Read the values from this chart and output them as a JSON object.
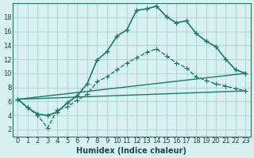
{
  "xlabel": "Humidex (Indice chaleur)",
  "bg_color": "#d8f0f0",
  "grid_color": "#b0d8d8",
  "line_color": "#1a7a6a",
  "x_ticks": [
    0,
    1,
    2,
    3,
    4,
    5,
    6,
    7,
    8,
    9,
    10,
    11,
    12,
    13,
    14,
    15,
    16,
    17,
    18,
    19,
    20,
    21,
    22,
    23
  ],
  "y_ticks": [
    2,
    4,
    6,
    8,
    10,
    12,
    14,
    16,
    18
  ],
  "xlim": [
    -0.5,
    23.5
  ],
  "ylim": [
    1,
    20
  ],
  "line1_x": [
    0,
    1,
    2,
    3,
    4,
    5,
    6,
    7,
    8,
    9,
    10,
    11,
    12,
    13,
    14,
    15,
    16,
    17,
    18,
    19,
    20,
    21,
    22,
    23
  ],
  "line1_y": [
    6.3,
    5.1,
    4.2,
    4.0,
    4.5,
    5.8,
    6.8,
    8.5,
    11.9,
    13.1,
    15.3,
    16.2,
    19.0,
    19.2,
    19.6,
    18.1,
    17.2,
    17.5,
    15.7,
    14.6,
    13.8,
    12.0,
    10.5,
    10.0
  ],
  "line2_x": [
    0,
    1,
    2,
    3,
    4,
    5,
    6,
    7,
    8,
    9,
    10,
    11,
    12,
    13,
    14,
    15,
    16,
    17,
    18,
    19,
    20,
    21,
    22,
    23
  ],
  "line2_y": [
    6.3,
    5.1,
    4.0,
    2.2,
    4.8,
    5.2,
    6.2,
    7.0,
    8.8,
    9.5,
    10.5,
    11.5,
    12.2,
    13.0,
    13.5,
    12.5,
    11.5,
    10.8,
    9.5,
    9.0,
    8.5,
    8.2,
    7.8,
    7.5
  ],
  "line3_x": [
    0,
    23
  ],
  "line3_y": [
    6.3,
    10.0
  ],
  "line4_x": [
    0,
    23
  ],
  "line4_y": [
    6.3,
    7.5
  ]
}
